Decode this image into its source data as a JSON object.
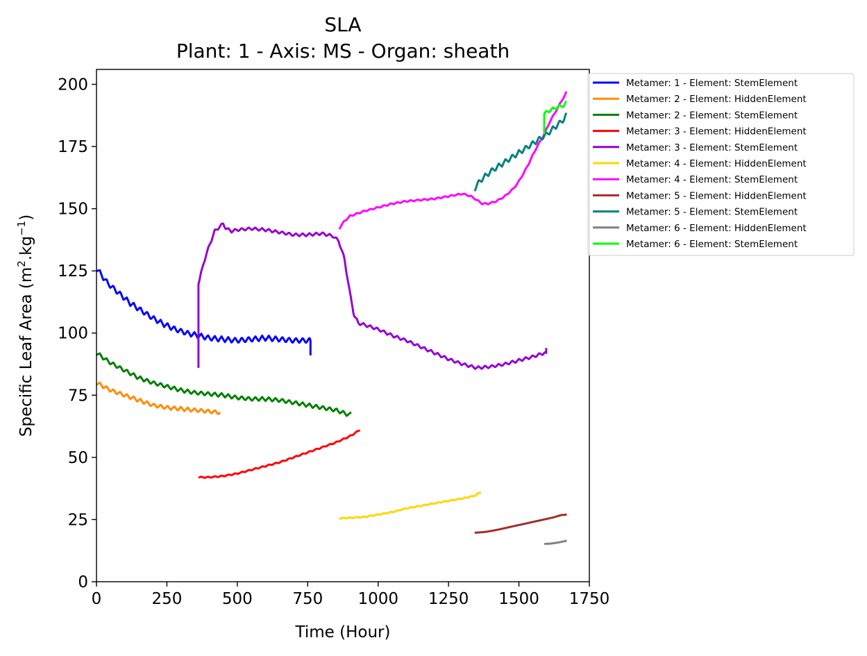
{
  "chart_data": {
    "type": "line",
    "title": "SLA",
    "subtitle": "Plant: 1 - Axis: MS - Organ: sheath",
    "xlabel": "Time (Hour)",
    "ylabel_main": "Specific Leaf Area (m",
    "ylabel_sup1": "2",
    "ylabel_mid": ".kg",
    "ylabel_sup2": "−1",
    "ylabel_end": ")",
    "xlim": [
      0,
      1750
    ],
    "ylim": [
      0,
      206
    ],
    "xticks": [
      0,
      250,
      500,
      750,
      1000,
      1250,
      1500,
      1750
    ],
    "yticks": [
      0,
      25,
      50,
      75,
      100,
      125,
      150,
      175,
      200
    ],
    "grid": false,
    "legend_position": "outside-top-right",
    "series": [
      {
        "name": "Metamer: 1 - Element: StemElement",
        "color": "#0000ff",
        "x": [
          0,
          40,
          80,
          120,
          160,
          200,
          240,
          280,
          320,
          360,
          400,
          450,
          500,
          550,
          600,
          650,
          700,
          755,
          760,
          760
        ],
        "y": [
          126,
          120,
          116,
          112,
          109,
          106,
          103.5,
          101.5,
          100,
          99,
          98,
          97.5,
          97,
          97.5,
          98,
          97.5,
          97,
          97,
          97,
          91
        ],
        "wiggle": 2.2
      },
      {
        "name": "Metamer: 2 - Element: HiddenElement",
        "color": "#ff8c00",
        "x": [
          0,
          50,
          100,
          150,
          200,
          250,
          300,
          350,
          400,
          440
        ],
        "y": [
          80,
          77,
          75,
          73,
          71,
          70,
          69.5,
          69,
          68.5,
          68
        ],
        "wiggle": 1.6
      },
      {
        "name": "Metamer: 2 - Element: StemElement",
        "color": "#008000",
        "x": [
          0,
          50,
          100,
          150,
          200,
          250,
          300,
          350,
          400,
          450,
          500,
          550,
          600,
          650,
          700,
          750,
          800,
          850,
          900,
          905
        ],
        "y": [
          92,
          88,
          85,
          82,
          80,
          78.5,
          77,
          76,
          75.5,
          75,
          74,
          73.5,
          73.5,
          73,
          72,
          71,
          70,
          69,
          67,
          68
        ],
        "wiggle": 1.6
      },
      {
        "name": "Metamer: 3 - Element: HiddenElement",
        "color": "#ff0000",
        "x": [
          362,
          400,
          450,
          500,
          550,
          600,
          650,
          700,
          750,
          800,
          850,
          900,
          935
        ],
        "y": [
          42,
          42,
          42.5,
          43.5,
          45,
          46.5,
          48,
          50,
          52,
          54,
          56,
          58.5,
          61
        ],
        "wiggle": 0.5
      },
      {
        "name": "Metamer: 3 - Element: StemElement",
        "color": "#9400d3",
        "x": [
          362,
          362,
          365,
          380,
          400,
          420,
          440,
          450,
          460,
          480,
          500,
          550,
          600,
          650,
          700,
          750,
          800,
          840,
          860,
          880,
          900,
          915,
          930,
          960,
          1000,
          1050,
          1100,
          1150,
          1200,
          1250,
          1300,
          1350,
          1400,
          1450,
          1500,
          1550,
          1590,
          1597,
          1597
        ],
        "y": [
          86,
          120,
          121,
          128,
          135,
          141,
          143,
          144,
          142,
          141,
          141.5,
          142,
          141.5,
          140.5,
          139.5,
          139.5,
          140,
          139,
          137,
          130,
          116,
          107,
          104,
          103,
          101.5,
          99,
          97,
          94.5,
          92,
          89.5,
          87.5,
          86,
          86.5,
          87.5,
          89,
          90.5,
          92,
          92,
          94
        ],
        "wiggle": 1.2
      },
      {
        "name": "Metamer: 4 - Element: HiddenElement",
        "color": "#ffd700",
        "x": [
          862,
          900,
          950,
          1000,
          1050,
          1100,
          1150,
          1200,
          1250,
          1300,
          1340,
          1365
        ],
        "y": [
          25.5,
          25.7,
          26,
          27,
          28,
          29.5,
          30.5,
          31.5,
          32.5,
          33.5,
          34.5,
          36
        ],
        "wiggle": 0.4
      },
      {
        "name": "Metamer: 4 - Element: StemElement",
        "color": "#ff00ff",
        "x": [
          862,
          880,
          900,
          950,
          1000,
          1050,
          1100,
          1150,
          1200,
          1250,
          1300,
          1330,
          1350,
          1370,
          1390,
          1420,
          1450,
          1480,
          1500,
          1530,
          1560,
          1590,
          1610,
          1630,
          1650,
          1670
        ],
        "y": [
          142,
          145,
          147,
          149,
          150.5,
          152,
          153,
          153.5,
          154,
          155,
          156,
          155,
          153.5,
          152,
          152,
          153,
          155,
          158,
          161,
          167,
          174,
          180,
          185,
          189,
          193,
          197
        ],
        "wiggle": 0.6
      },
      {
        "name": "Metamer: 5 - Element: HiddenElement",
        "color": "#a52a2a",
        "x": [
          1343,
          1380,
          1420,
          1460,
          1500,
          1540,
          1580,
          1620,
          1650,
          1670
        ],
        "y": [
          19.7,
          20,
          20.8,
          21.8,
          22.8,
          23.8,
          24.8,
          25.8,
          26.8,
          27
        ],
        "wiggle": 0
      },
      {
        "name": "Metamer: 5 - Element: StemElement",
        "color": "#008080",
        "x": [
          1343,
          1360,
          1380,
          1400,
          1420,
          1440,
          1460,
          1480,
          1500,
          1520,
          1540,
          1560,
          1580,
          1600,
          1620,
          1640,
          1660,
          1670
        ],
        "y": [
          158,
          161,
          163,
          165,
          166.5,
          168,
          169.5,
          171,
          172.5,
          174,
          175.5,
          177,
          178.5,
          180,
          182,
          184,
          186,
          188
        ],
        "wiggle": 2.2
      },
      {
        "name": "Metamer: 6 - Element: HiddenElement",
        "color": "#808080",
        "x": [
          1590,
          1610,
          1630,
          1650,
          1670
        ],
        "y": [
          15.2,
          15.3,
          15.6,
          16,
          16.5
        ],
        "wiggle": 0
      },
      {
        "name": "Metamer: 6 - Element: StemElement",
        "color": "#00ff00",
        "x": [
          1590,
          1590,
          1600,
          1620,
          1640,
          1660,
          1670
        ],
        "y": [
          180,
          188,
          189,
          190,
          191,
          191.5,
          193
        ],
        "wiggle": 1.3
      }
    ]
  }
}
